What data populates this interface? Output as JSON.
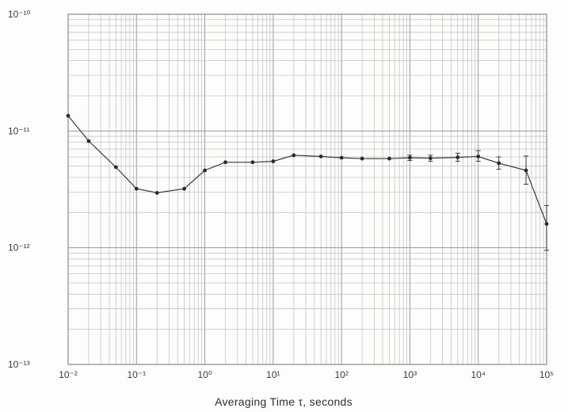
{
  "chart_data": {
    "type": "line",
    "title": "",
    "xlabel": "Averaging Time τ, seconds",
    "ylabel": "",
    "x_scale": "log",
    "y_scale": "log",
    "xlim": [
      0.01,
      100000
    ],
    "ylim": [
      1e-13,
      1e-10
    ],
    "grid": true,
    "x_tick_labels": [
      "10⁻²",
      "10⁻¹",
      "10⁰",
      "10¹",
      "10²",
      "10³",
      "10⁴",
      "10⁵"
    ],
    "y_tick_labels": [
      "10⁻¹⁰",
      "10⁻¹¹",
      "10⁻¹²",
      "10⁻¹³"
    ],
    "series": [
      {
        "x": [
          0.01,
          0.02,
          0.05,
          0.1,
          0.2,
          0.5,
          1,
          2,
          5,
          10,
          20,
          50,
          100,
          200,
          500,
          1000,
          2000,
          5000,
          10000,
          20000,
          50000,
          100000
        ],
        "y": [
          1.35e-11,
          8.2e-12,
          4.9e-12,
          3.2e-12,
          2.95e-12,
          3.2e-12,
          4.6e-12,
          5.4e-12,
          5.4e-12,
          5.5e-12,
          6.2e-12,
          6.05e-12,
          5.9e-12,
          5.8e-12,
          5.8e-12,
          5.9e-12,
          5.85e-12,
          5.95e-12,
          6.05e-12,
          5.3e-12,
          4.6e-12,
          1.6e-12
        ],
        "err_low": [
          null,
          null,
          null,
          null,
          null,
          null,
          null,
          null,
          null,
          null,
          null,
          null,
          null,
          null,
          null,
          5.6e-12,
          5.5e-12,
          5.5e-12,
          5.5e-12,
          4.7e-12,
          3.5e-12,
          9.5e-13
        ],
        "err_high": [
          null,
          null,
          null,
          null,
          null,
          null,
          null,
          null,
          null,
          null,
          null,
          null,
          null,
          null,
          null,
          6.2e-12,
          6.2e-12,
          6.45e-12,
          6.8e-12,
          6e-12,
          6.1e-12,
          2.3e-12
        ]
      }
    ]
  }
}
